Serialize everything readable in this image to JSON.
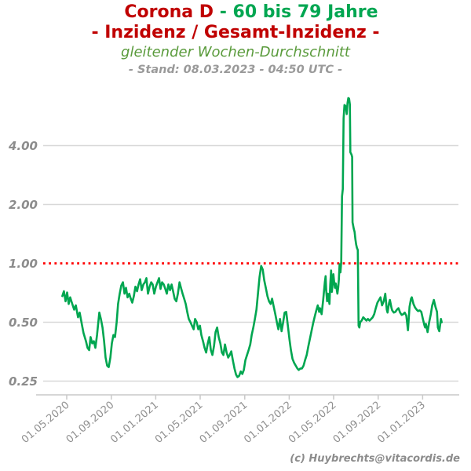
{
  "colors": {
    "title_red": "#c00000",
    "title_green": "#00a651",
    "subtitle_green": "#5a9b3c",
    "stand_gray": "#9a9a9a",
    "label_gray": "#8c8c8c",
    "xlabel_gray": "#909090",
    "grid_gray": "#d8d8d8",
    "axis_gray": "#c9c9c9",
    "line_green": "#00a650",
    "reference_red": "#ff0000"
  },
  "header": {
    "title_part1": "Corona D ",
    "title_part2": "- 60 bis 79 Jahre",
    "title_line2": "- Inzidenz / Gesamt-Inzidenz -",
    "subtitle": "gleitender Wochen-Durchschnitt",
    "stand": "- Stand: 08.03.2023 - 04:50 UTC -"
  },
  "footer": {
    "credit": "(c) Huybrechts@vitacordis.de"
  },
  "chart_data": {
    "type": "line",
    "title": "Corona D - 60 bis 79 Jahre - Inzidenz / Gesamt-Inzidenz -",
    "subtitle": "gleitender Wochen-Durchschnitt",
    "as_of": "- Stand: 08.03.2023 - 04:50 UTC -",
    "xlabel": "",
    "ylabel": "",
    "grid": true,
    "legend": "none",
    "y_axis": {
      "scale": "log2",
      "range": [
        0.23,
        7.5
      ],
      "ticks": [
        {
          "v": 0.25,
          "label": "0.25"
        },
        {
          "v": 0.5,
          "label": "0.50"
        },
        {
          "v": 1.0,
          "label": "1.00",
          "reference": true
        },
        {
          "v": 2.0,
          "label": "2.00"
        },
        {
          "v": 4.0,
          "label": "4.00"
        }
      ],
      "reference_line": {
        "value": 1.0,
        "style": "dotted",
        "color": "#ff0000"
      }
    },
    "x_axis": {
      "unit": "decimal_year",
      "ticks": [
        {
          "t": 2020.333,
          "label": "01.05.2020"
        },
        {
          "t": 2020.667,
          "label": "01.09.2020"
        },
        {
          "t": 2021.0,
          "label": "01.01.2021"
        },
        {
          "t": 2021.333,
          "label": "01.05.2021"
        },
        {
          "t": 2021.667,
          "label": "01.09.2021"
        },
        {
          "t": 2022.0,
          "label": "01.01.2022"
        },
        {
          "t": 2022.333,
          "label": "01.05.2022"
        },
        {
          "t": 2022.667,
          "label": "01.09.2022"
        },
        {
          "t": 2023.0,
          "label": "01.01.2023"
        }
      ]
    },
    "series": [
      {
        "name": "Inzidenz 60-79 / Gesamt-Inzidenz (gleitender Wochen-Durchschnitt)",
        "color": "#00a650",
        "points": [
          [
            2020.3,
            0.68
          ],
          [
            2020.312,
            0.72
          ],
          [
            2020.324,
            0.64
          ],
          [
            2020.336,
            0.71
          ],
          [
            2020.348,
            0.62
          ],
          [
            2020.359,
            0.67
          ],
          [
            2020.371,
            0.63
          ],
          [
            2020.389,
            0.58
          ],
          [
            2020.401,
            0.61
          ],
          [
            2020.418,
            0.53
          ],
          [
            2020.43,
            0.56
          ],
          [
            2020.448,
            0.48
          ],
          [
            2020.459,
            0.44
          ],
          [
            2020.477,
            0.4
          ],
          [
            2020.489,
            0.37
          ],
          [
            2020.501,
            0.36
          ],
          [
            2020.512,
            0.42
          ],
          [
            2020.524,
            0.39
          ],
          [
            2020.536,
            0.4
          ],
          [
            2020.548,
            0.37
          ],
          [
            2020.56,
            0.43
          ],
          [
            2020.577,
            0.56
          ],
          [
            2020.589,
            0.52
          ],
          [
            2020.601,
            0.47
          ],
          [
            2020.613,
            0.4
          ],
          [
            2020.624,
            0.33
          ],
          [
            2020.636,
            0.3
          ],
          [
            2020.648,
            0.295
          ],
          [
            2020.66,
            0.33
          ],
          [
            2020.671,
            0.39
          ],
          [
            2020.683,
            0.43
          ],
          [
            2020.695,
            0.42
          ],
          [
            2020.707,
            0.5
          ],
          [
            2020.718,
            0.62
          ],
          [
            2020.73,
            0.7
          ],
          [
            2020.742,
            0.77
          ],
          [
            2020.754,
            0.8
          ],
          [
            2020.766,
            0.7
          ],
          [
            2020.777,
            0.75
          ],
          [
            2020.789,
            0.67
          ],
          [
            2020.801,
            0.7
          ],
          [
            2020.813,
            0.66
          ],
          [
            2020.824,
            0.63
          ],
          [
            2020.836,
            0.68
          ],
          [
            2020.848,
            0.76
          ],
          [
            2020.86,
            0.72
          ],
          [
            2020.871,
            0.78
          ],
          [
            2020.883,
            0.83
          ],
          [
            2020.895,
            0.73
          ],
          [
            2020.907,
            0.78
          ],
          [
            2020.919,
            0.8
          ],
          [
            2020.93,
            0.84
          ],
          [
            2020.942,
            0.7
          ],
          [
            2020.954,
            0.76
          ],
          [
            2020.966,
            0.8
          ],
          [
            2020.977,
            0.78
          ],
          [
            2020.989,
            0.7
          ],
          [
            2021.001,
            0.76
          ],
          [
            2021.013,
            0.8
          ],
          [
            2021.025,
            0.84
          ],
          [
            2021.036,
            0.74
          ],
          [
            2021.048,
            0.8
          ],
          [
            2021.06,
            0.78
          ],
          [
            2021.072,
            0.74
          ],
          [
            2021.083,
            0.7
          ],
          [
            2021.095,
            0.78
          ],
          [
            2021.107,
            0.73
          ],
          [
            2021.119,
            0.78
          ],
          [
            2021.13,
            0.72
          ],
          [
            2021.142,
            0.66
          ],
          [
            2021.154,
            0.64
          ],
          [
            2021.166,
            0.7
          ],
          [
            2021.178,
            0.8
          ],
          [
            2021.189,
            0.75
          ],
          [
            2021.201,
            0.7
          ],
          [
            2021.213,
            0.66
          ],
          [
            2021.225,
            0.62
          ],
          [
            2021.237,
            0.56
          ],
          [
            2021.248,
            0.52
          ],
          [
            2021.26,
            0.5
          ],
          [
            2021.272,
            0.48
          ],
          [
            2021.284,
            0.46
          ],
          [
            2021.295,
            0.52
          ],
          [
            2021.307,
            0.5
          ],
          [
            2021.319,
            0.46
          ],
          [
            2021.331,
            0.48
          ],
          [
            2021.342,
            0.43
          ],
          [
            2021.354,
            0.4
          ],
          [
            2021.366,
            0.37
          ],
          [
            2021.378,
            0.35
          ],
          [
            2021.39,
            0.39
          ],
          [
            2021.401,
            0.42
          ],
          [
            2021.413,
            0.36
          ],
          [
            2021.425,
            0.34
          ],
          [
            2021.437,
            0.38
          ],
          [
            2021.448,
            0.445
          ],
          [
            2021.46,
            0.47
          ],
          [
            2021.472,
            0.42
          ],
          [
            2021.484,
            0.39
          ],
          [
            2021.496,
            0.35
          ],
          [
            2021.507,
            0.34
          ],
          [
            2021.519,
            0.385
          ],
          [
            2021.531,
            0.35
          ],
          [
            2021.543,
            0.33
          ],
          [
            2021.554,
            0.34
          ],
          [
            2021.566,
            0.355
          ],
          [
            2021.578,
            0.32
          ],
          [
            2021.59,
            0.29
          ],
          [
            2021.602,
            0.27
          ],
          [
            2021.613,
            0.262
          ],
          [
            2021.625,
            0.266
          ],
          [
            2021.637,
            0.28
          ],
          [
            2021.649,
            0.272
          ],
          [
            2021.66,
            0.285
          ],
          [
            2021.672,
            0.32
          ],
          [
            2021.684,
            0.34
          ],
          [
            2021.696,
            0.36
          ],
          [
            2021.708,
            0.385
          ],
          [
            2021.719,
            0.43
          ],
          [
            2021.731,
            0.47
          ],
          [
            2021.743,
            0.52
          ],
          [
            2021.755,
            0.58
          ],
          [
            2021.766,
            0.7
          ],
          [
            2021.778,
            0.85
          ],
          [
            2021.79,
            0.97
          ],
          [
            2021.802,
            0.93
          ],
          [
            2021.813,
            0.82
          ],
          [
            2021.825,
            0.75
          ],
          [
            2021.837,
            0.68
          ],
          [
            2021.849,
            0.64
          ],
          [
            2021.861,
            0.62
          ],
          [
            2021.872,
            0.66
          ],
          [
            2021.884,
            0.6
          ],
          [
            2021.896,
            0.55
          ],
          [
            2021.908,
            0.5
          ],
          [
            2021.919,
            0.46
          ],
          [
            2021.931,
            0.52
          ],
          [
            2021.943,
            0.45
          ],
          [
            2021.955,
            0.5
          ],
          [
            2021.966,
            0.56
          ],
          [
            2021.978,
            0.565
          ],
          [
            2021.99,
            0.48
          ],
          [
            2022.002,
            0.41
          ],
          [
            2022.013,
            0.36
          ],
          [
            2022.025,
            0.325
          ],
          [
            2022.037,
            0.31
          ],
          [
            2022.049,
            0.3
          ],
          [
            2022.061,
            0.29
          ],
          [
            2022.072,
            0.285
          ],
          [
            2022.084,
            0.29
          ],
          [
            2022.096,
            0.29
          ],
          [
            2022.108,
            0.3
          ],
          [
            2022.119,
            0.32
          ],
          [
            2022.131,
            0.34
          ],
          [
            2022.143,
            0.375
          ],
          [
            2022.155,
            0.41
          ],
          [
            2022.167,
            0.45
          ],
          [
            2022.178,
            0.49
          ],
          [
            2022.19,
            0.53
          ],
          [
            2022.202,
            0.57
          ],
          [
            2022.214,
            0.61
          ],
          [
            2022.225,
            0.565
          ],
          [
            2022.231,
            0.59
          ],
          [
            2022.243,
            0.55
          ],
          [
            2022.255,
            0.65
          ],
          [
            2022.267,
            0.8
          ],
          [
            2022.273,
            0.86
          ],
          [
            2022.278,
            0.72
          ],
          [
            2022.284,
            0.64
          ],
          [
            2022.29,
            0.7
          ],
          [
            2022.302,
            0.62
          ],
          [
            2022.308,
            0.78
          ],
          [
            2022.314,
            0.92
          ],
          [
            2022.32,
            0.715
          ],
          [
            2022.331,
            0.88
          ],
          [
            2022.337,
            0.8
          ],
          [
            2022.343,
            0.75
          ],
          [
            2022.349,
            0.79
          ],
          [
            2022.361,
            0.7
          ],
          [
            2022.367,
            0.75
          ],
          [
            2022.372,
            0.82
          ],
          [
            2022.378,
            0.99
          ],
          [
            2022.384,
            0.9
          ],
          [
            2022.39,
            1.02
          ],
          [
            2022.396,
            2.2
          ],
          [
            2022.402,
            2.4
          ],
          [
            2022.408,
            5.5
          ],
          [
            2022.414,
            6.45
          ],
          [
            2022.42,
            6.4
          ],
          [
            2022.425,
            6.3
          ],
          [
            2022.431,
            5.8
          ],
          [
            2022.437,
            6.6
          ],
          [
            2022.443,
            7.0
          ],
          [
            2022.449,
            6.95
          ],
          [
            2022.455,
            6.5
          ],
          [
            2022.458,
            3.7
          ],
          [
            2022.467,
            3.6
          ],
          [
            2022.472,
            3.5
          ],
          [
            2022.475,
            1.62
          ],
          [
            2022.484,
            1.5
          ],
          [
            2022.49,
            1.45
          ],
          [
            2022.496,
            1.33
          ],
          [
            2022.502,
            1.25
          ],
          [
            2022.508,
            1.2
          ],
          [
            2022.514,
            1.17
          ],
          [
            2022.517,
            0.75
          ],
          [
            2022.52,
            0.48
          ],
          [
            2022.526,
            0.47
          ],
          [
            2022.532,
            0.5
          ],
          [
            2022.543,
            0.51
          ],
          [
            2022.555,
            0.53
          ],
          [
            2022.567,
            0.52
          ],
          [
            2022.579,
            0.51
          ],
          [
            2022.59,
            0.52
          ],
          [
            2022.602,
            0.51
          ],
          [
            2022.614,
            0.52
          ],
          [
            2022.626,
            0.53
          ],
          [
            2022.637,
            0.55
          ],
          [
            2022.649,
            0.59
          ],
          [
            2022.661,
            0.63
          ],
          [
            2022.673,
            0.65
          ],
          [
            2022.684,
            0.67
          ],
          [
            2022.696,
            0.61
          ],
          [
            2022.708,
            0.64
          ],
          [
            2022.72,
            0.7
          ],
          [
            2022.731,
            0.58
          ],
          [
            2022.737,
            0.56
          ],
          [
            2022.749,
            0.63
          ],
          [
            2022.755,
            0.65
          ],
          [
            2022.767,
            0.59
          ],
          [
            2022.772,
            0.575
          ],
          [
            2022.784,
            0.56
          ],
          [
            2022.796,
            0.565
          ],
          [
            2022.808,
            0.58
          ],
          [
            2022.819,
            0.59
          ],
          [
            2022.831,
            0.56
          ],
          [
            2022.843,
            0.545
          ],
          [
            2022.855,
            0.55
          ],
          [
            2022.866,
            0.56
          ],
          [
            2022.878,
            0.54
          ],
          [
            2022.89,
            0.455
          ],
          [
            2022.902,
            0.6
          ],
          [
            2022.913,
            0.66
          ],
          [
            2022.919,
            0.67
          ],
          [
            2022.931,
            0.62
          ],
          [
            2022.943,
            0.595
          ],
          [
            2022.955,
            0.58
          ],
          [
            2022.966,
            0.57
          ],
          [
            2022.978,
            0.575
          ],
          [
            2022.99,
            0.565
          ],
          [
            2023.002,
            0.52
          ],
          [
            2023.014,
            0.48
          ],
          [
            2023.019,
            0.47
          ],
          [
            2023.025,
            0.49
          ],
          [
            2023.037,
            0.445
          ],
          [
            2023.049,
            0.5
          ],
          [
            2023.061,
            0.55
          ],
          [
            2023.072,
            0.61
          ],
          [
            2023.084,
            0.65
          ],
          [
            2023.096,
            0.6
          ],
          [
            2023.108,
            0.565
          ],
          [
            2023.114,
            0.47
          ],
          [
            2023.125,
            0.45
          ],
          [
            2023.137,
            0.52
          ],
          [
            2023.143,
            0.5
          ]
        ]
      }
    ]
  }
}
